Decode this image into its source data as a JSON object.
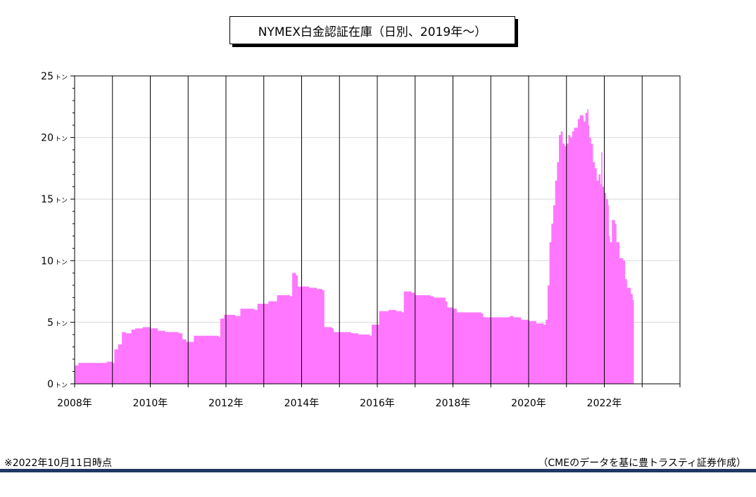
{
  "page": {
    "note_left": "※2022年10月11日時点",
    "note_right": "（CMEのデータを基に豊トラスティ証券作成）"
  },
  "chart_data": {
    "type": "area",
    "title": "NYMEX白金認証在庫（日別、2019年～）",
    "xlabel": "",
    "ylabel": "",
    "y_unit": "トン",
    "ylim": [
      0,
      25
    ],
    "yticks": [
      0,
      5,
      10,
      15,
      20,
      25
    ],
    "xlim": [
      2008.0,
      2024.0
    ],
    "xticks": [
      {
        "value": 2008,
        "label": "2008年"
      },
      {
        "value": 2010,
        "label": "2010年"
      },
      {
        "value": 2012,
        "label": "2012年"
      },
      {
        "value": 2014,
        "label": "2014年"
      },
      {
        "value": 2016,
        "label": "2016年"
      },
      {
        "value": 2018,
        "label": "2018年"
      },
      {
        "value": 2020,
        "label": "2020年"
      },
      {
        "value": 2022,
        "label": "2022年"
      }
    ],
    "grid": {
      "vertical_yearly": true,
      "horizontal": true
    },
    "color": "#ff77ff",
    "series": [
      {
        "name": "",
        "points": [
          [
            2008.0,
            1.5
          ],
          [
            2008.1,
            1.7
          ],
          [
            2008.5,
            1.7
          ],
          [
            2008.8,
            1.7
          ],
          [
            2008.85,
            1.8
          ],
          [
            2009.0,
            1.7
          ],
          [
            2009.05,
            2.8
          ],
          [
            2009.15,
            3.2
          ],
          [
            2009.25,
            4.2
          ],
          [
            2009.35,
            4.1
          ],
          [
            2009.5,
            4.4
          ],
          [
            2009.6,
            4.5
          ],
          [
            2009.8,
            4.6
          ],
          [
            2010.0,
            4.5
          ],
          [
            2010.2,
            4.3
          ],
          [
            2010.4,
            4.2
          ],
          [
            2010.6,
            4.2
          ],
          [
            2010.75,
            4.1
          ],
          [
            2010.85,
            3.6
          ],
          [
            2010.95,
            3.4
          ],
          [
            2011.1,
            3.4
          ],
          [
            2011.15,
            3.9
          ],
          [
            2011.5,
            3.9
          ],
          [
            2011.8,
            3.8
          ],
          [
            2011.85,
            5.3
          ],
          [
            2011.95,
            5.6
          ],
          [
            2012.2,
            5.6
          ],
          [
            2012.25,
            5.5
          ],
          [
            2012.35,
            5.5
          ],
          [
            2012.38,
            6.1
          ],
          [
            2012.6,
            6.1
          ],
          [
            2012.75,
            6.0
          ],
          [
            2012.8,
            6.0
          ],
          [
            2012.83,
            6.5
          ],
          [
            2013.0,
            6.5
          ],
          [
            2013.1,
            6.5
          ],
          [
            2013.12,
            6.7
          ],
          [
            2013.3,
            6.7
          ],
          [
            2013.35,
            7.2
          ],
          [
            2013.6,
            7.2
          ],
          [
            2013.7,
            7.1
          ],
          [
            2013.75,
            9.0
          ],
          [
            2013.85,
            8.8
          ],
          [
            2013.9,
            7.9
          ],
          [
            2014.2,
            7.8
          ],
          [
            2014.4,
            7.7
          ],
          [
            2014.55,
            7.6
          ],
          [
            2014.6,
            4.6
          ],
          [
            2014.8,
            4.5
          ],
          [
            2014.85,
            4.2
          ],
          [
            2015.0,
            4.2
          ],
          [
            2015.3,
            4.1
          ],
          [
            2015.5,
            4.0
          ],
          [
            2015.8,
            3.9
          ],
          [
            2015.85,
            4.8
          ],
          [
            2016.0,
            4.8
          ],
          [
            2016.05,
            5.9
          ],
          [
            2016.3,
            6.0
          ],
          [
            2016.5,
            5.9
          ],
          [
            2016.65,
            5.8
          ],
          [
            2016.7,
            7.5
          ],
          [
            2016.9,
            7.4
          ],
          [
            2017.0,
            7.2
          ],
          [
            2017.4,
            7.1
          ],
          [
            2017.5,
            7.0
          ],
          [
            2017.6,
            7.0
          ],
          [
            2017.8,
            6.7
          ],
          [
            2017.85,
            6.2
          ],
          [
            2018.0,
            6.1
          ],
          [
            2018.1,
            5.8
          ],
          [
            2018.5,
            5.8
          ],
          [
            2018.75,
            5.7
          ],
          [
            2018.8,
            5.4
          ],
          [
            2019.0,
            5.4
          ],
          [
            2019.5,
            5.5
          ],
          [
            2019.6,
            5.4
          ],
          [
            2019.8,
            5.2
          ],
          [
            2020.0,
            5.1
          ],
          [
            2020.2,
            4.9
          ],
          [
            2020.4,
            4.8
          ],
          [
            2020.45,
            5.2
          ],
          [
            2020.5,
            8.0
          ],
          [
            2020.55,
            11.5
          ],
          [
            2020.6,
            13.0
          ],
          [
            2020.65,
            14.5
          ],
          [
            2020.7,
            16.5
          ],
          [
            2020.75,
            18.0
          ],
          [
            2020.8,
            20.2
          ],
          [
            2020.85,
            20.5
          ],
          [
            2020.9,
            19.5
          ],
          [
            2020.95,
            19.3
          ],
          [
            2021.0,
            19.5
          ],
          [
            2021.05,
            20.2
          ],
          [
            2021.1,
            20.0
          ],
          [
            2021.15,
            20.5
          ],
          [
            2021.2,
            20.8
          ],
          [
            2021.3,
            21.5
          ],
          [
            2021.35,
            21.8
          ],
          [
            2021.45,
            21.3
          ],
          [
            2021.5,
            22.0
          ],
          [
            2021.55,
            22.3
          ],
          [
            2021.58,
            21.0
          ],
          [
            2021.6,
            20.0
          ],
          [
            2021.65,
            19.5
          ],
          [
            2021.7,
            18.0
          ],
          [
            2021.75,
            17.5
          ],
          [
            2021.8,
            16.5
          ],
          [
            2021.85,
            17.0
          ],
          [
            2021.9,
            16.2
          ],
          [
            2021.92,
            18.8
          ],
          [
            2021.95,
            16.0
          ],
          [
            2022.0,
            15.5
          ],
          [
            2022.05,
            15.0
          ],
          [
            2022.1,
            14.5
          ],
          [
            2022.12,
            12.0
          ],
          [
            2022.15,
            11.5
          ],
          [
            2022.2,
            13.3
          ],
          [
            2022.28,
            13.0
          ],
          [
            2022.32,
            11.5
          ],
          [
            2022.4,
            10.2
          ],
          [
            2022.5,
            10.0
          ],
          [
            2022.55,
            8.5
          ],
          [
            2022.6,
            7.8
          ],
          [
            2022.7,
            7.3
          ],
          [
            2022.75,
            6.8
          ],
          [
            2022.78,
            5.6
          ]
        ]
      }
    ]
  }
}
